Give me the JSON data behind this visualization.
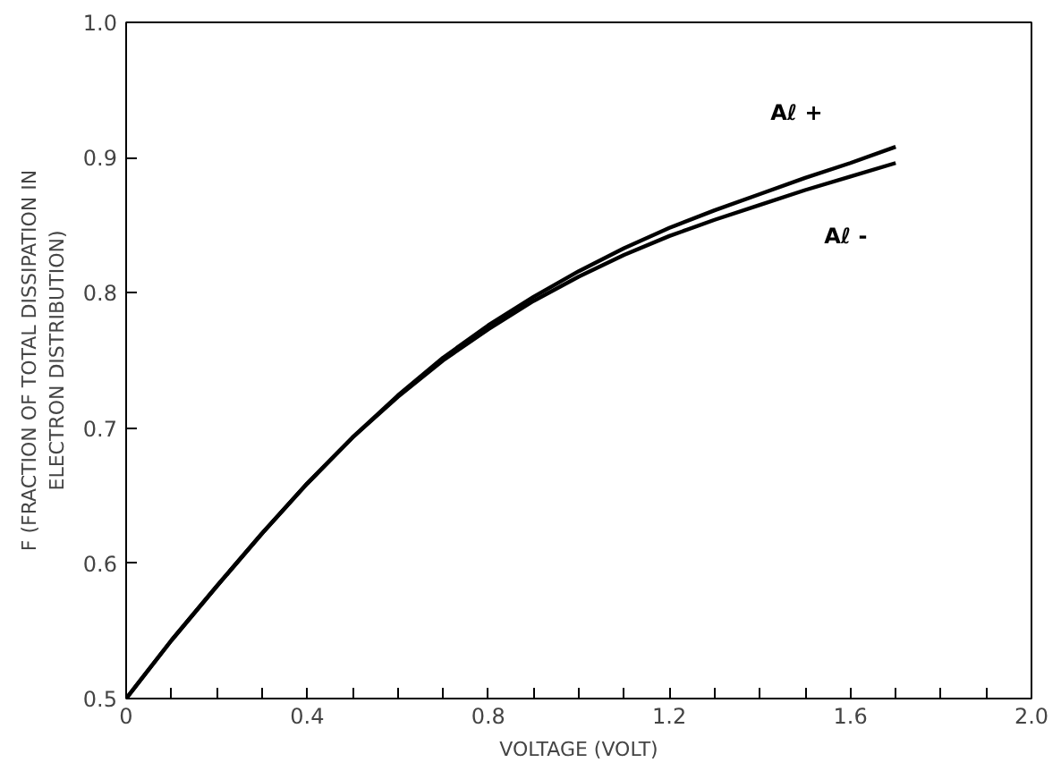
{
  "chart_data": {
    "type": "line",
    "xlabel": "VOLTAGE (VOLT)",
    "ylabel": "F (FRACTION OF TOTAL DISSIPATION IN\nELECTRON DISTRIBUTION)",
    "x": [
      0,
      0.1,
      0.2,
      0.3,
      0.4,
      0.5,
      0.6,
      0.7,
      0.8,
      0.9,
      1.0,
      1.1,
      1.2,
      1.3,
      1.4,
      1.5,
      1.6,
      1.7
    ],
    "series": [
      {
        "name": "Aℓ +",
        "color": "#000000",
        "values": [
          0.5,
          0.543,
          0.583,
          0.622,
          0.659,
          0.693,
          0.724,
          0.752,
          0.776,
          0.797,
          0.816,
          0.833,
          0.848,
          0.861,
          0.873,
          0.885,
          0.896,
          0.908
        ]
      },
      {
        "name": "Aℓ -",
        "color": "#000000",
        "values": [
          0.5,
          0.543,
          0.583,
          0.622,
          0.659,
          0.693,
          0.723,
          0.75,
          0.773,
          0.794,
          0.812,
          0.828,
          0.842,
          0.854,
          0.865,
          0.876,
          0.886,
          0.896
        ]
      }
    ],
    "xlim": [
      0,
      2.0
    ],
    "ylim": [
      0.5,
      1.0
    ],
    "xticks": [
      0,
      {
        "value": 0.1,
        "label": null
      },
      {
        "value": 0.2,
        "label": null
      },
      {
        "value": 0.3,
        "label": null
      },
      0.4,
      {
        "value": 0.5,
        "label": null
      },
      {
        "value": 0.6,
        "label": null
      },
      {
        "value": 0.7,
        "label": null
      },
      0.8,
      {
        "value": 0.9,
        "label": null
      },
      {
        "value": 1.0,
        "label": null
      },
      {
        "value": 1.1,
        "label": null
      },
      1.2,
      {
        "value": 1.3,
        "label": null
      },
      {
        "value": 1.4,
        "label": null
      },
      {
        "value": 1.5,
        "label": null
      },
      1.6,
      {
        "value": 1.7,
        "label": null
      },
      {
        "value": 1.8,
        "label": null
      },
      {
        "value": 1.9,
        "label": null
      },
      {
        "value": 2.0,
        "label": "2.0"
      }
    ],
    "yticks": [
      0.5,
      0.6,
      0.7,
      0.8,
      0.9,
      {
        "value": 1.0,
        "label": "1.0"
      }
    ],
    "grid": false,
    "legend": false,
    "marker": "none",
    "line_style": "solid"
  }
}
